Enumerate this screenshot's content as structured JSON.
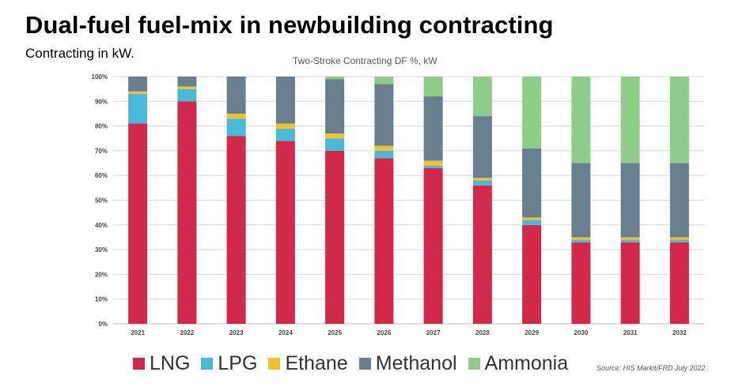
{
  "header": {
    "title": "Dual-fuel fuel-mix in newbuilding contracting",
    "subtitle": "Contracting in kW."
  },
  "source": "Source: HIS Markit/FRD July 2022",
  "colors": {
    "LNG": "#d0294a",
    "LPG": "#4ab9d8",
    "Ethane": "#f2c12e",
    "Methanol": "#677f8f",
    "Ammonia": "#8fcc8a"
  },
  "chart_data": {
    "type": "bar",
    "stacked": true,
    "title": "Two-Stroke Contracting DF %, kW",
    "xlabel": "",
    "ylabel": "",
    "ylim": [
      0,
      100
    ],
    "yticks": [
      "0%",
      "10%",
      "20%",
      "30%",
      "40%",
      "50%",
      "60%",
      "70%",
      "80%",
      "90%",
      "100%"
    ],
    "categories": [
      "2021",
      "2022",
      "2023",
      "2024",
      "2025",
      "2026",
      "2027",
      "2028",
      "2029",
      "2030",
      "2031",
      "2032"
    ],
    "series": [
      {
        "name": "LNG",
        "values": [
          81,
          90,
          76,
          74,
          70,
          67,
          63,
          56,
          40,
          33,
          33,
          33
        ]
      },
      {
        "name": "LPG",
        "values": [
          12,
          5,
          7,
          5,
          5,
          3,
          1,
          2,
          2,
          1,
          1,
          1
        ]
      },
      {
        "name": "Ethane",
        "values": [
          1,
          1,
          2,
          2,
          2,
          2,
          2,
          1,
          1,
          1,
          1,
          1
        ]
      },
      {
        "name": "Methanol",
        "values": [
          6,
          4,
          15,
          19,
          22,
          25,
          26,
          25,
          28,
          30,
          30,
          30
        ]
      },
      {
        "name": "Ammonia",
        "values": [
          0,
          0,
          0,
          0,
          1,
          3,
          8,
          16,
          29,
          35,
          35,
          35
        ]
      }
    ],
    "legend": "bottom"
  }
}
